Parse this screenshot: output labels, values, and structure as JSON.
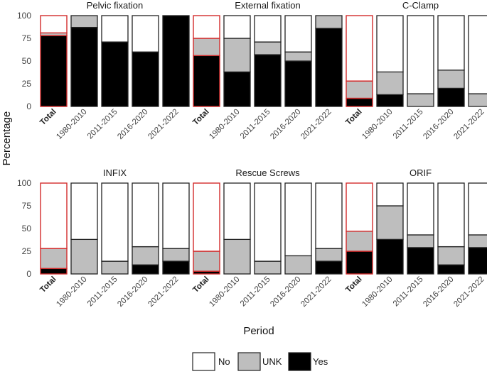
{
  "chart_data": {
    "type": "bar",
    "stacked": true,
    "ylabel": "Percentage",
    "xlabel": "Period",
    "ylim": [
      0,
      100
    ],
    "yticks": [
      0,
      25,
      50,
      75,
      100
    ],
    "categories": [
      "Total",
      "1980-2010",
      "2011-2015",
      "2016-2020",
      "2021-2022"
    ],
    "highlight_category": "Total",
    "legend": [
      {
        "key": "No",
        "label": "No"
      },
      {
        "key": "UNK",
        "label": "UNK"
      },
      {
        "key": "Yes",
        "label": "Yes"
      }
    ],
    "colors": {
      "No": "#ffffff",
      "UNK": "#bebebe",
      "Yes": "#000000",
      "highlight": "#d22b2b",
      "border": "#222222"
    },
    "panels": [
      {
        "title": "Pelvic fixation",
        "series": {
          "Yes": [
            78,
            87,
            71,
            60,
            100
          ],
          "UNK": [
            3,
            13,
            0,
            0,
            0
          ],
          "No": [
            19,
            0,
            29,
            40,
            0
          ]
        }
      },
      {
        "title": "External fixation",
        "series": {
          "Yes": [
            56,
            38,
            57,
            50,
            86
          ],
          "UNK": [
            19,
            37,
            14,
            10,
            14
          ],
          "No": [
            25,
            25,
            29,
            40,
            0
          ]
        }
      },
      {
        "title": "C-Clamp",
        "series": {
          "Yes": [
            9,
            13,
            0,
            20,
            0
          ],
          "UNK": [
            19,
            25,
            14,
            20,
            14
          ],
          "No": [
            72,
            62,
            86,
            60,
            86
          ]
        }
      },
      {
        "title": "INFIX",
        "series": {
          "Yes": [
            6,
            0,
            0,
            10,
            14
          ],
          "UNK": [
            22,
            38,
            14,
            20,
            14
          ],
          "No": [
            72,
            62,
            86,
            70,
            72
          ]
        }
      },
      {
        "title": "Rescue Screws",
        "series": {
          "Yes": [
            3,
            0,
            0,
            0,
            14
          ],
          "UNK": [
            22,
            38,
            14,
            20,
            14
          ],
          "No": [
            75,
            62,
            86,
            80,
            72
          ]
        }
      },
      {
        "title": "ORIF",
        "series": {
          "Yes": [
            25,
            38,
            29,
            10,
            29
          ],
          "UNK": [
            22,
            37,
            14,
            20,
            14
          ],
          "No": [
            53,
            25,
            57,
            70,
            57
          ]
        }
      }
    ]
  }
}
